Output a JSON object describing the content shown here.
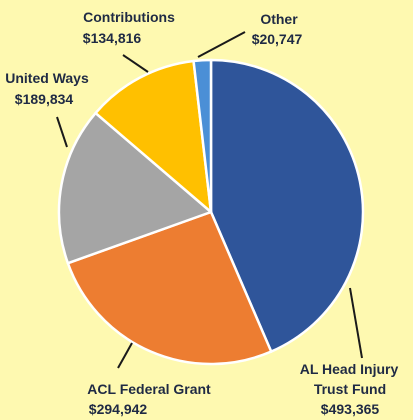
{
  "chart_data": {
    "type": "pie",
    "slices": [
      {
        "label": "AL Head Injury Trust Fund",
        "value": 493365,
        "display": "$493,365",
        "color": "#2f559a"
      },
      {
        "label": "ACL Federal Grant",
        "value": 294942,
        "display": "$294,942",
        "color": "#ed7d31"
      },
      {
        "label": "United Ways",
        "value": 189834,
        "display": "$189,834",
        "color": "#a5a5a5"
      },
      {
        "label": "Contributions",
        "value": 134816,
        "display": "$134,816",
        "color": "#ffc000"
      },
      {
        "label": "Other",
        "value": 20747,
        "display": "$20,747",
        "color": "#4b8fd6"
      }
    ],
    "legend": "none",
    "background": "#fef9b0"
  },
  "labels": {
    "al_head_line1": "AL Head Injury",
    "al_head_line2": "Trust Fund",
    "al_head_value": "$493,365",
    "acl_line1": "ACL Federal Grant",
    "acl_value": "$294,942",
    "united_line1": "United Ways",
    "united_value": "$189,834",
    "contrib_line1": "Contributions",
    "contrib_value": "$134,816",
    "other_line1": "Other",
    "other_value": "$20,747"
  }
}
